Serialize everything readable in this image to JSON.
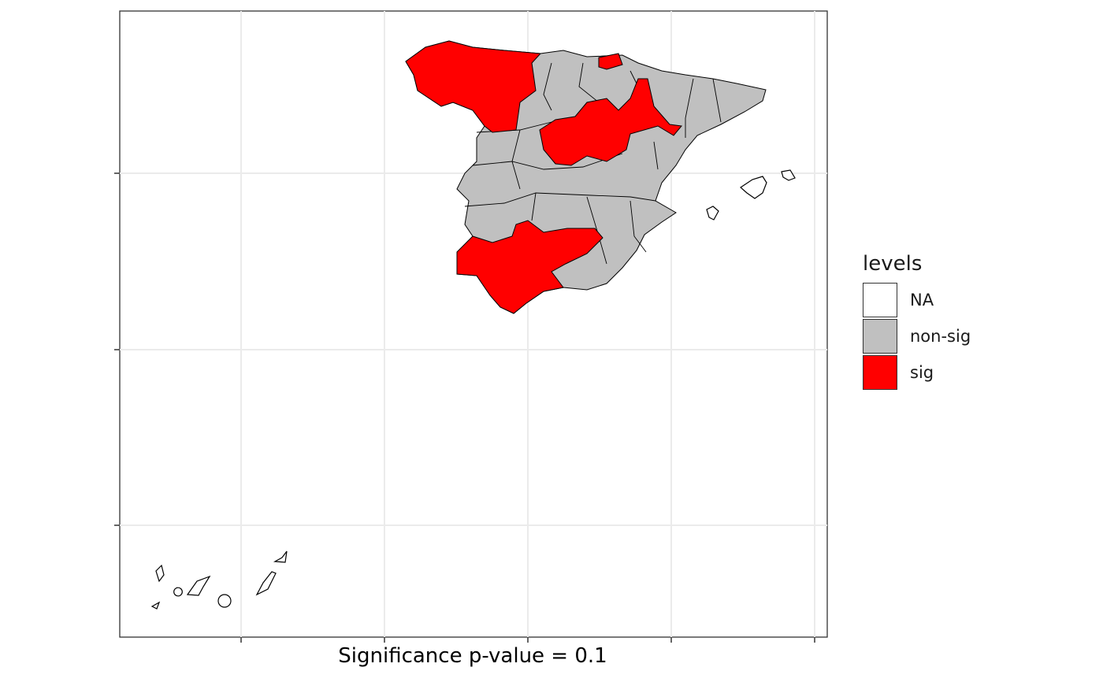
{
  "map": {
    "caption": "Significance p-value = 0.1",
    "legend": {
      "title": "levels",
      "items": [
        {
          "label": "NA",
          "color": "#FFFFFF"
        },
        {
          "label": "non-sig",
          "color": "#C0C0C0"
        },
        {
          "label": "sig",
          "color": "#FF0000"
        }
      ]
    },
    "colors": {
      "sig": "#FF0000",
      "non_sig": "#C0C0C0",
      "na": "#FFFFFF",
      "grid": "#EBEBEB",
      "border": "#333333"
    },
    "gridlines": true
  }
}
